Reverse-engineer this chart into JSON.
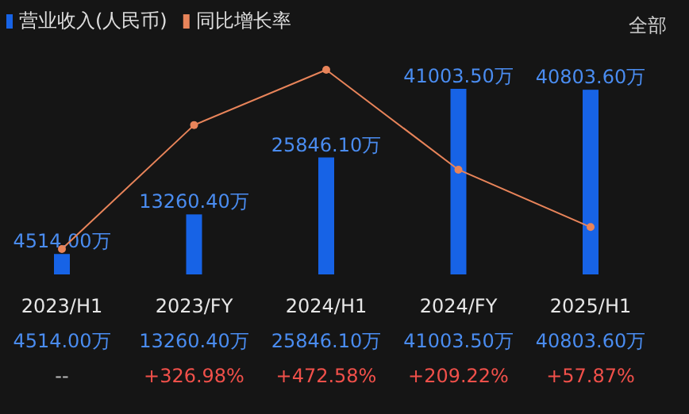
{
  "chart_data": {
    "type": "bar",
    "categories": [
      "2023/H1",
      "2023/FY",
      "2024/H1",
      "2024/FY",
      "2025/H1"
    ],
    "series": [
      {
        "name": "营业收入(人民币)",
        "color": "#1763e6",
        "values": [
          4514,
          13260.4,
          25846.1,
          41003.5,
          40803.6
        ],
        "value_labels": [
          "4514.00万",
          "13260.40万",
          "25846.10万",
          "41003.50万",
          "40803.60万"
        ]
      },
      {
        "name": "同比增长率",
        "type": "line",
        "axis": "y2",
        "color": "#e8845a",
        "values": [
          0,
          326.98,
          472.58,
          209.22,
          57.87
        ],
        "value_labels": [
          "--",
          "+326.98%",
          "+472.58%",
          "+209.22%",
          "+57.87%"
        ]
      }
    ],
    "marker": "circle",
    "legend": "top left",
    "grid": false,
    "annotations": [
      "全部"
    ]
  }
}
